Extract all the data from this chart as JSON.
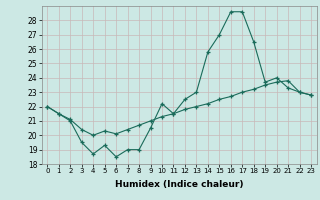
{
  "title": "",
  "xlabel": "Humidex (Indice chaleur)",
  "ylabel": "",
  "bg_color": "#cce8e4",
  "grid_color": "#c8b8b8",
  "line_color": "#1a6b5a",
  "xlim": [
    -0.5,
    23.5
  ],
  "ylim": [
    18,
    29
  ],
  "yticks": [
    18,
    19,
    20,
    21,
    22,
    23,
    24,
    25,
    26,
    27,
    28
  ],
  "xticks": [
    0,
    1,
    2,
    3,
    4,
    5,
    6,
    7,
    8,
    9,
    10,
    11,
    12,
    13,
    14,
    15,
    16,
    17,
    18,
    19,
    20,
    21,
    22,
    23
  ],
  "series1_x": [
    0,
    1,
    2,
    3,
    4,
    5,
    6,
    7,
    8,
    9,
    10,
    11,
    12,
    13,
    14,
    15,
    16,
    17,
    18,
    19,
    20,
    21,
    22,
    23
  ],
  "series1_y": [
    22.0,
    21.5,
    21.0,
    19.5,
    18.7,
    19.3,
    18.5,
    19.0,
    19.0,
    20.5,
    22.2,
    21.5,
    22.5,
    23.0,
    25.8,
    27.0,
    28.6,
    28.6,
    26.5,
    23.7,
    24.0,
    23.3,
    23.0,
    22.8
  ],
  "series2_x": [
    0,
    1,
    2,
    3,
    4,
    5,
    6,
    7,
    8,
    9,
    10,
    11,
    12,
    13,
    14,
    15,
    16,
    17,
    18,
    19,
    20,
    21,
    22,
    23
  ],
  "series2_y": [
    22.0,
    21.5,
    21.1,
    20.4,
    20.0,
    20.3,
    20.1,
    20.4,
    20.7,
    21.0,
    21.3,
    21.5,
    21.8,
    22.0,
    22.2,
    22.5,
    22.7,
    23.0,
    23.2,
    23.5,
    23.7,
    23.8,
    23.0,
    22.8
  ]
}
